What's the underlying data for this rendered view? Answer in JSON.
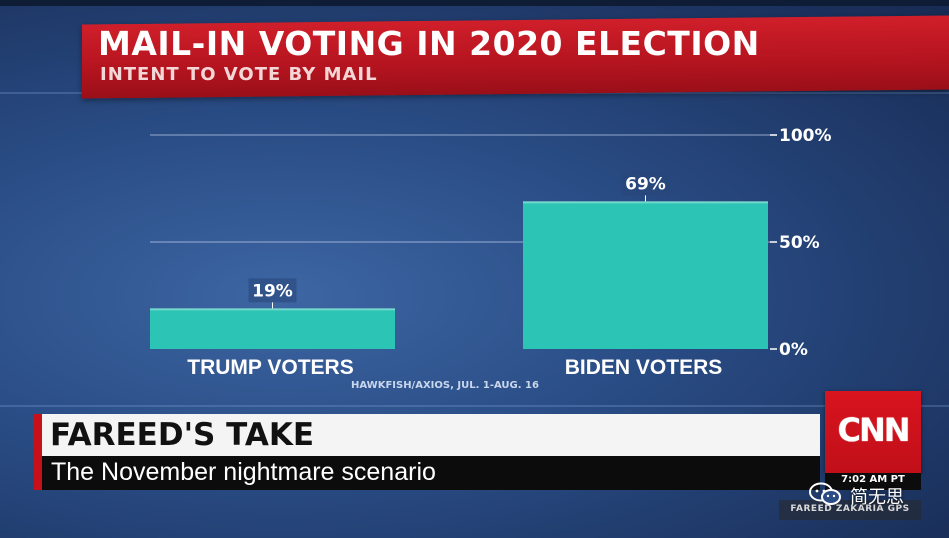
{
  "header": {
    "title": "MAIL-IN VOTING IN 2020 ELECTION",
    "subtitle": "INTENT TO VOTE BY MAIL"
  },
  "chart_data": {
    "type": "bar",
    "categories": [
      "TRUMP VOTERS",
      "BIDEN VOTERS"
    ],
    "values": [
      19,
      69
    ],
    "value_labels": [
      "19%",
      "69%"
    ],
    "ylim": [
      0,
      100
    ],
    "yticks": [
      {
        "value": 0,
        "label": "0%"
      },
      {
        "value": 50,
        "label": "50%"
      },
      {
        "value": 100,
        "label": "100%"
      }
    ],
    "grid": true,
    "title": "MAIL-IN VOTING IN 2020 ELECTION",
    "subtitle": "INTENT TO VOTE BY MAIL",
    "source": "HAWKFISH/AXIOS, JUL. 1-AUG. 16",
    "bar_color": "#2cc4b4"
  },
  "lower_third": {
    "title": "FAREED'S TAKE",
    "subtitle": "The November nightmare scenario"
  },
  "network": {
    "logo": "CNN",
    "time": "7:02 AM PT",
    "show": "FAREED ZAKARIA GPS"
  },
  "watermark": {
    "text": "简无思",
    "icon": "chat-bubbles-icon"
  },
  "colors": {
    "header_red": "#c8101b",
    "background_blue": "#2a4d86",
    "bar_teal": "#2cc4b4"
  }
}
